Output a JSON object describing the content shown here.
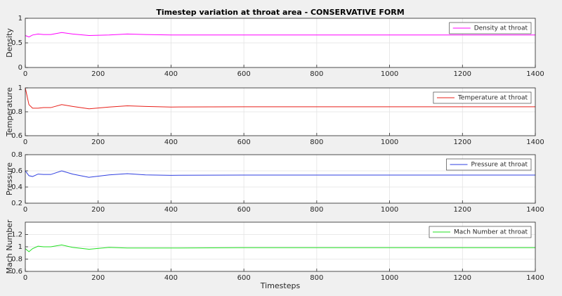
{
  "chart_data": [
    {
      "type": "line",
      "title": "Timestep variation at throat area - CONSERVATIVE FORM",
      "ylabel": "Density",
      "x": [
        0,
        10,
        20,
        35,
        50,
        70,
        100,
        130,
        175,
        230,
        280,
        330,
        400,
        600,
        800,
        1000,
        1200,
        1400
      ],
      "series": [
        {
          "name": "Density at throat",
          "color": "#ff00ff",
          "values": [
            0.65,
            0.62,
            0.66,
            0.68,
            0.67,
            0.67,
            0.71,
            0.68,
            0.65,
            0.66,
            0.68,
            0.67,
            0.66,
            0.66,
            0.66,
            0.66,
            0.66,
            0.66
          ]
        }
      ],
      "xlim": [
        0,
        1400
      ],
      "xticks": [
        0,
        200,
        400,
        600,
        800,
        1000,
        1200,
        1400
      ],
      "ylim": [
        0,
        1
      ],
      "yticks": [
        0,
        0.5,
        1
      ],
      "grid": true,
      "legend": "northeast"
    },
    {
      "type": "line",
      "ylabel": "Temperature",
      "x": [
        0,
        10,
        20,
        35,
        50,
        70,
        100,
        130,
        175,
        230,
        280,
        330,
        400,
        600,
        800,
        1000,
        1200,
        1400
      ],
      "series": [
        {
          "name": "Temperature at throat",
          "color": "#e8201a",
          "values": [
            1,
            0.86,
            0.83,
            0.83,
            0.835,
            0.835,
            0.86,
            0.845,
            0.825,
            0.84,
            0.85,
            0.845,
            0.84,
            0.842,
            0.842,
            0.842,
            0.842,
            0.842
          ]
        }
      ],
      "xlim": [
        0,
        1400
      ],
      "xticks": [
        0,
        200,
        400,
        600,
        800,
        1000,
        1200,
        1400
      ],
      "ylim": [
        0.6,
        1
      ],
      "yticks": [
        0.6,
        0.8,
        1
      ],
      "grid": true,
      "legend": "northeast"
    },
    {
      "type": "line",
      "ylabel": "Pressure",
      "x": [
        0,
        10,
        20,
        35,
        50,
        70,
        100,
        130,
        175,
        230,
        280,
        330,
        400,
        600,
        800,
        1000,
        1200,
        1400
      ],
      "series": [
        {
          "name": "Pressure at throat",
          "color": "#2f3fe0",
          "values": [
            0.6,
            0.54,
            0.53,
            0.56,
            0.555,
            0.555,
            0.6,
            0.56,
            0.52,
            0.55,
            0.565,
            0.55,
            0.545,
            0.548,
            0.548,
            0.548,
            0.548,
            0.548
          ]
        }
      ],
      "xlim": [
        0,
        1400
      ],
      "xticks": [
        0,
        200,
        400,
        600,
        800,
        1000,
        1200,
        1400
      ],
      "ylim": [
        0.2,
        0.8
      ],
      "yticks": [
        0.2,
        0.4,
        0.6,
        0.8
      ],
      "grid": true,
      "legend": "northeast"
    },
    {
      "type": "line",
      "ylabel": "Mach Number",
      "xlabel": "Timesteps",
      "x": [
        0,
        10,
        20,
        35,
        50,
        70,
        100,
        130,
        175,
        230,
        280,
        330,
        400,
        600,
        800,
        1000,
        1200,
        1400
      ],
      "series": [
        {
          "name": "Mach Number at throat",
          "color": "#22e022",
          "values": [
            0.97,
            0.92,
            0.97,
            1.01,
            1.0,
            1.0,
            1.03,
            0.99,
            0.96,
            0.99,
            0.98,
            0.98,
            0.98,
            0.985,
            0.985,
            0.985,
            0.985,
            0.985
          ]
        }
      ],
      "xlim": [
        0,
        1400
      ],
      "xticks": [
        0,
        200,
        400,
        600,
        800,
        1000,
        1200,
        1400
      ],
      "ylim": [
        0.6,
        1.4
      ],
      "yticks": [
        0.6,
        0.8,
        1,
        1.2
      ],
      "grid": true,
      "legend": "northeast"
    }
  ]
}
